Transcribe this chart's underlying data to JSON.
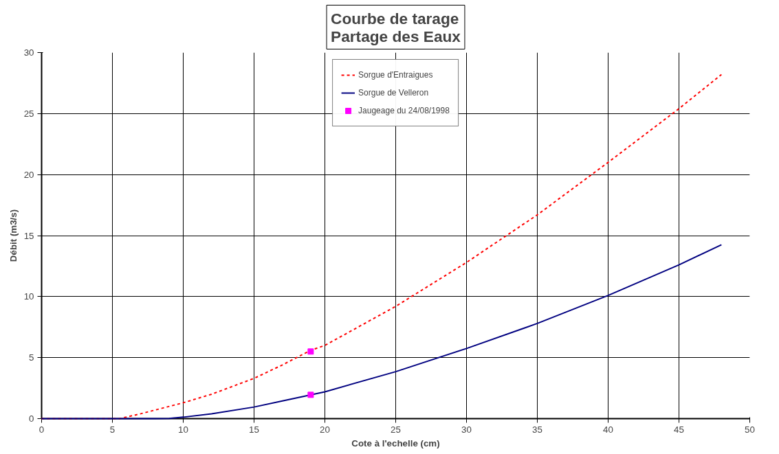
{
  "chart_data": {
    "type": "line",
    "title": "Courbe de tarage\nPartage des Eaux",
    "xlabel": "Cote à l'echelle (cm)",
    "ylabel": "Débit (m3/s)",
    "xlim": [
      0,
      50
    ],
    "xticks": [
      0,
      5,
      10,
      15,
      20,
      25,
      30,
      35,
      40,
      45,
      50
    ],
    "ylim": [
      0,
      30
    ],
    "yticks": [
      0,
      5,
      10,
      15,
      20,
      25,
      30
    ],
    "grid": true,
    "legend": "top",
    "series": [
      {
        "name": "Sorgue d'Entraigues",
        "color": "#ff0000",
        "line_style": "dashed",
        "x": [
          0,
          5,
          5.5,
          7,
          8,
          10,
          12,
          15,
          17,
          19,
          20,
          25,
          30,
          35,
          40,
          45,
          48
        ],
        "values": [
          0,
          0,
          0,
          0.4,
          0.7,
          1.3,
          2,
          3.3,
          4.4,
          5.6,
          6.0,
          9.2,
          12.8,
          16.7,
          21,
          25.4,
          28.2
        ]
      },
      {
        "name": "Sorgue de Velleron",
        "color": "#000080",
        "line_style": "solid",
        "x": [
          0,
          5,
          8,
          9,
          10,
          12,
          15,
          17,
          20,
          25,
          30,
          35,
          40,
          45,
          48
        ],
        "values": [
          0,
          0,
          0,
          0.02,
          0.12,
          0.4,
          0.95,
          1.45,
          2.2,
          3.85,
          5.75,
          7.8,
          10.1,
          12.6,
          14.25
        ]
      },
      {
        "name": "Jaugeage du 24/08/1998",
        "type": "scatter",
        "marker": "square",
        "color": "#ff00ff",
        "x": [
          19,
          19
        ],
        "values": [
          5.5,
          1.95
        ]
      }
    ]
  }
}
